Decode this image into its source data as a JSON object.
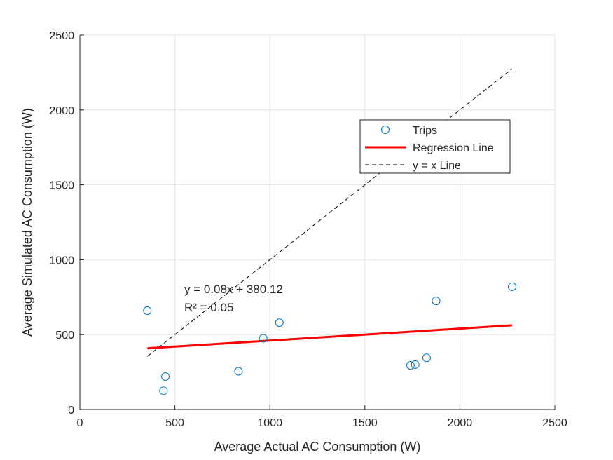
{
  "chart_data": {
    "type": "scatter",
    "title": "",
    "xlabel": "Average Actual AC Consumption (W)",
    "ylabel": "Average Simulated AC Consumption (W)",
    "xlim": [
      0,
      2500
    ],
    "ylim": [
      0,
      2500
    ],
    "xticks": [
      0,
      500,
      1000,
      1500,
      2000,
      2500
    ],
    "yticks": [
      0,
      500,
      1000,
      1500,
      2000,
      2500
    ],
    "grid": true,
    "legend_position": "upper-right",
    "series": [
      {
        "name": "Trips",
        "kind": "markers",
        "marker": "circle",
        "color": "#0072BD",
        "points": [
          [
            355,
            660
          ],
          [
            440,
            125
          ],
          [
            450,
            220
          ],
          [
            835,
            255
          ],
          [
            965,
            475
          ],
          [
            1050,
            580
          ],
          [
            1740,
            295
          ],
          [
            1765,
            300
          ],
          [
            1825,
            345
          ],
          [
            1875,
            725
          ],
          [
            2275,
            820
          ]
        ]
      },
      {
        "name": "Regression Line",
        "kind": "line",
        "color": "#FF0000",
        "style": "solid",
        "slope": 0.08,
        "intercept": 380.12,
        "x_range": [
          355,
          2275
        ]
      },
      {
        "name": "y = x Line",
        "kind": "line",
        "color": "#000000",
        "style": "dashed",
        "slope": 1,
        "intercept": 0,
        "x_range": [
          355,
          2275
        ]
      }
    ],
    "annotations": [
      "y = 0.08x + 380.12",
      "R² = 0.05"
    ]
  }
}
